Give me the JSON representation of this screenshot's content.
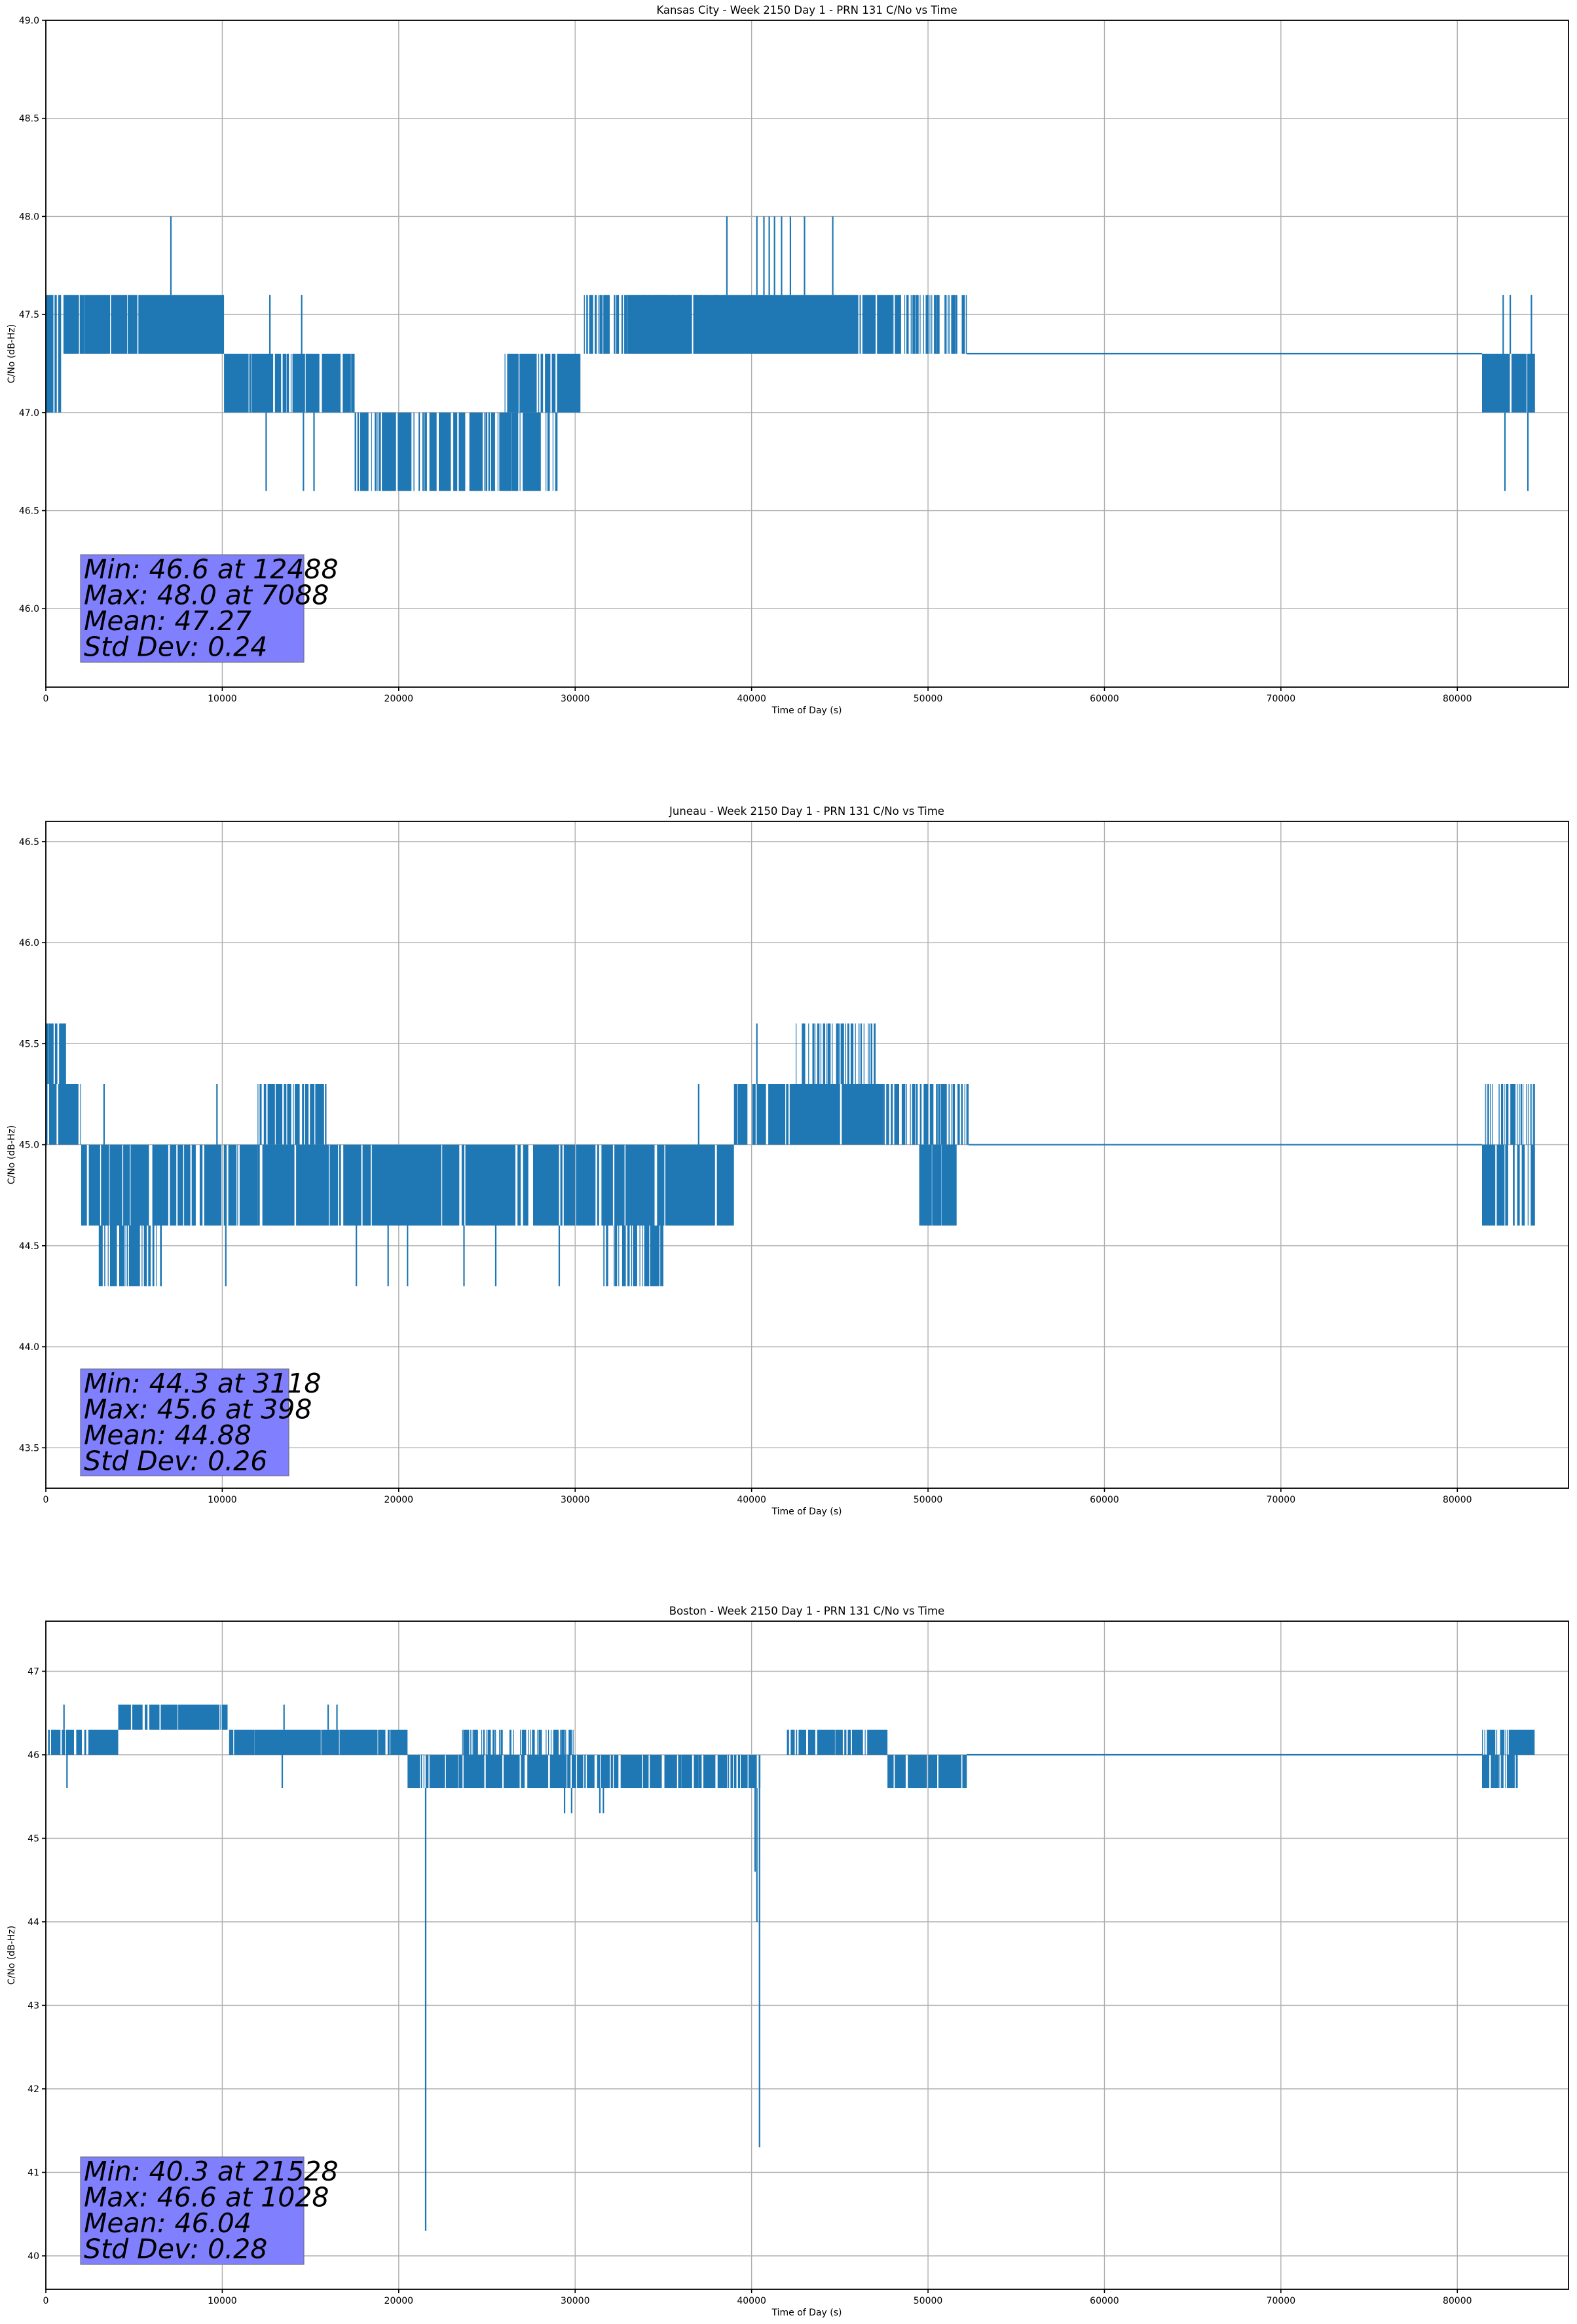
{
  "colors": {
    "series": "#1f77b4",
    "stats_box_fill": "#8080ff",
    "stats_box_edge": "#707080",
    "grid": "#b0b0b0"
  },
  "chart_data": [
    {
      "type": "line",
      "title": "Kansas City - Week 2150 Day 1 - PRN 131 C/No vs Time",
      "xlabel": "Time of Day (s)",
      "ylabel": "C/No (dB-Hz)",
      "xlim": [
        0,
        86300
      ],
      "ylim": [
        45.6,
        49.0
      ],
      "grid": true,
      "x_ticks": [
        0,
        10000,
        20000,
        30000,
        40000,
        50000,
        60000,
        70000,
        80000
      ],
      "x_tick_labels": [
        "0",
        "10000",
        "20000",
        "30000",
        "40000",
        "50000",
        "60000",
        "70000",
        "80000"
      ],
      "y_ticks": [
        46.0,
        46.5,
        47.0,
        47.5,
        48.0,
        48.5,
        49.0
      ],
      "y_tick_labels": [
        "46.0",
        "46.5",
        "47.0",
        "47.5",
        "48.0",
        "48.5",
        "49.0"
      ],
      "series": [
        {
          "name": "PRN 131 C/No",
          "description": "1-second samples toggling between quantized levels; segments list [t_start, t_end, low, high, fill_density]",
          "segments": [
            [
              0,
              1000,
              47.0,
              47.6,
              0.35
            ],
            [
              1000,
              10100,
              47.3,
              47.6,
              0.95
            ],
            [
              10100,
              17500,
              47.0,
              47.3,
              0.9
            ],
            [
              17500,
              29000,
              46.6,
              47.0,
              0.7
            ],
            [
              26000,
              30300,
              47.0,
              47.3,
              0.85
            ],
            [
              30300,
              38500,
              47.3,
              47.6,
              0.6
            ],
            [
              33000,
              48000,
              47.3,
              47.6,
              0.95
            ],
            [
              48000,
              52200,
              47.3,
              47.6,
              0.55
            ],
            [
              52200,
              81400,
              47.3,
              47.3,
              1.0
            ],
            [
              81400,
              84400,
              47.0,
              47.3,
              0.95
            ]
          ],
          "spikes": [
            [
              7088,
              48.0
            ],
            [
              38600,
              48.0
            ],
            [
              40300,
              48.0
            ],
            [
              40700,
              48.0
            ],
            [
              41000,
              48.0
            ],
            [
              41300,
              48.0
            ],
            [
              41700,
              48.0
            ],
            [
              42200,
              48.0
            ],
            [
              43000,
              48.0
            ],
            [
              44600,
              48.0
            ],
            [
              12488,
              46.6
            ],
            [
              14600,
              46.6
            ],
            [
              15200,
              46.6
            ],
            [
              82700,
              46.6
            ],
            [
              84000,
              46.6
            ],
            [
              82600,
              47.6
            ],
            [
              83000,
              47.6
            ],
            [
              84200,
              47.6
            ],
            [
              12700,
              47.6
            ],
            [
              14500,
              47.6
            ]
          ],
          "stats": {
            "min": 46.6,
            "min_at": 12488,
            "max": 48.0,
            "max_at": 7088,
            "mean": 47.27,
            "std_dev": 0.24
          }
        }
      ],
      "annotation_lines": [
        "Min: 46.6 at 12488",
        "Max: 48.0 at 7088",
        "Mean: 47.27",
        "Std Dev: 0.24"
      ]
    },
    {
      "type": "line",
      "title": "Juneau - Week 2150 Day 1 - PRN 131 C/No vs Time",
      "xlabel": "Time of Day (s)",
      "ylabel": "C/No (dB-Hz)",
      "xlim": [
        0,
        86300
      ],
      "ylim": [
        43.3,
        46.6
      ],
      "grid": true,
      "x_ticks": [
        0,
        10000,
        20000,
        30000,
        40000,
        50000,
        60000,
        70000,
        80000
      ],
      "x_tick_labels": [
        "0",
        "10000",
        "20000",
        "30000",
        "40000",
        "50000",
        "60000",
        "70000",
        "80000"
      ],
      "y_ticks": [
        43.5,
        44.0,
        44.5,
        45.0,
        45.5,
        46.0,
        46.5
      ],
      "y_tick_labels": [
        "43.5",
        "44.0",
        "44.5",
        "45.0",
        "45.5",
        "46.0",
        "46.5"
      ],
      "series": [
        {
          "name": "PRN 131 C/No",
          "description": "1-second samples toggling between quantized levels; segments list [t_start, t_end, low, high, fill_density]",
          "segments": [
            [
              0,
              1100,
              45.3,
              45.6,
              0.7
            ],
            [
              0,
              2000,
              45.0,
              45.3,
              0.8
            ],
            [
              2000,
              12000,
              44.6,
              45.0,
              0.85
            ],
            [
              3000,
              6700,
              44.3,
              44.6,
              0.45
            ],
            [
              12000,
              16000,
              45.0,
              45.3,
              0.55
            ],
            [
              12000,
              39000,
              44.6,
              45.0,
              0.9
            ],
            [
              31600,
              35000,
              44.3,
              44.6,
              0.5
            ],
            [
              39000,
              47500,
              45.0,
              45.3,
              0.92
            ],
            [
              42500,
              47000,
              45.3,
              45.6,
              0.35
            ],
            [
              47500,
              52300,
              45.0,
              45.3,
              0.4
            ],
            [
              49500,
              51700,
              44.6,
              45.0,
              0.85
            ],
            [
              52300,
              81400,
              45.0,
              45.0,
              1.0
            ],
            [
              81400,
              84400,
              44.6,
              45.0,
              0.6
            ],
            [
              81400,
              84400,
              45.0,
              45.3,
              0.3
            ]
          ],
          "spikes": [
            [
              398,
              45.6
            ],
            [
              3118,
              44.3
            ],
            [
              10200,
              44.3
            ],
            [
              9700,
              45.3
            ],
            [
              3300,
              45.3
            ],
            [
              17600,
              44.3
            ],
            [
              19400,
              44.3
            ],
            [
              20500,
              44.3
            ],
            [
              23700,
              44.3
            ],
            [
              25500,
              44.3
            ],
            [
              29100,
              44.3
            ],
            [
              40300,
              45.6
            ],
            [
              37000,
              45.3
            ]
          ],
          "stats": {
            "min": 44.3,
            "min_at": 3118,
            "max": 45.6,
            "max_at": 398,
            "mean": 44.88,
            "std_dev": 0.26
          }
        }
      ],
      "annotation_lines": [
        "Min: 44.3 at 3118",
        "Max: 45.6 at 398",
        "Mean: 44.88",
        "Std Dev: 0.26"
      ]
    },
    {
      "type": "line",
      "title": "Boston - Week 2150 Day 1 - PRN 131 C/No vs Time",
      "xlabel": "Time of Day (s)",
      "ylabel": "C/No (dB-Hz)",
      "xlim": [
        0,
        86300
      ],
      "ylim": [
        39.6,
        47.6
      ],
      "grid": true,
      "x_ticks": [
        0,
        10000,
        20000,
        30000,
        40000,
        50000,
        60000,
        70000,
        80000
      ],
      "x_tick_labels": [
        "0",
        "10000",
        "20000",
        "30000",
        "40000",
        "50000",
        "60000",
        "70000",
        "80000"
      ],
      "y_ticks": [
        40,
        41,
        42,
        43,
        44,
        45,
        46,
        47
      ],
      "y_tick_labels": [
        "40",
        "41",
        "42",
        "43",
        "44",
        "45",
        "46",
        "47"
      ],
      "series": [
        {
          "name": "PRN 131 C/No",
          "description": "1-second samples toggling between quantized levels; segments list [t_start, t_end, low, high, fill_density]",
          "segments": [
            [
              0,
              4100,
              46.0,
              46.3,
              0.75
            ],
            [
              4100,
              10300,
              46.3,
              46.6,
              0.92
            ],
            [
              10300,
              20500,
              46.0,
              46.3,
              0.9
            ],
            [
              20500,
              37000,
              45.6,
              46.0,
              0.85
            ],
            [
              23500,
              30000,
              46.0,
              46.3,
              0.35
            ],
            [
              37000,
              40500,
              45.6,
              46.0,
              0.8
            ],
            [
              42000,
              47700,
              46.0,
              46.3,
              0.8
            ],
            [
              47700,
              52200,
              45.6,
              46.0,
              0.92
            ],
            [
              52200,
              81400,
              46.0,
              46.0,
              1.0
            ],
            [
              81400,
              84400,
              46.0,
              46.3,
              0.6
            ],
            [
              81400,
              83500,
              45.6,
              46.0,
              0.4
            ]
          ],
          "spikes": [
            [
              1028,
              46.6
            ],
            [
              13500,
              46.6
            ],
            [
              16000,
              46.6
            ],
            [
              16500,
              46.6
            ],
            [
              1200,
              45.6
            ],
            [
              13400,
              45.6
            ],
            [
              29400,
              45.3
            ],
            [
              29800,
              45.3
            ],
            [
              31400,
              45.3
            ],
            [
              31600,
              45.3
            ],
            [
              21528,
              40.3
            ],
            [
              40300,
              44.0
            ],
            [
              40450,
              41.3
            ],
            [
              40200,
              44.6
            ]
          ],
          "stats": {
            "min": 40.3,
            "min_at": 21528,
            "max": 46.6,
            "max_at": 1028,
            "mean": 46.04,
            "std_dev": 0.28
          }
        }
      ],
      "annotation_lines": [
        "Min: 40.3 at 21528",
        "Max: 46.6 at 1028",
        "Mean: 46.04",
        "Std Dev: 0.28"
      ]
    }
  ]
}
